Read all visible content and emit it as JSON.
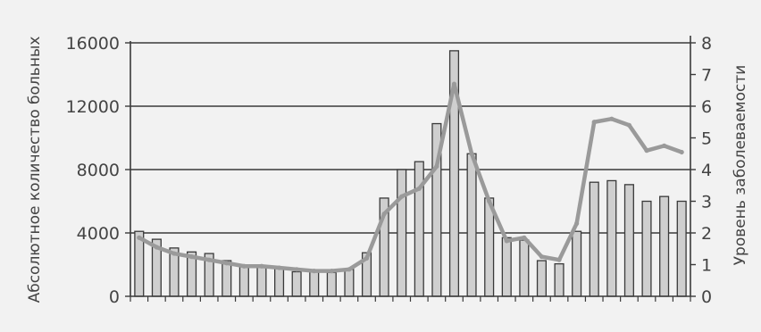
{
  "chart_data": {
    "type": "bar",
    "title": "",
    "ylabel": "Абсолютное количество больных",
    "y2label": "Уровень заболеваемости",
    "ylim": [
      0,
      16000
    ],
    "y2lim": [
      0,
      8
    ],
    "yticks": [
      "0",
      "4000",
      "8000",
      "12000",
      "16000"
    ],
    "y2ticks": [
      "0",
      "1",
      "2",
      "3",
      "4",
      "5",
      "6",
      "7",
      "8"
    ],
    "grid": true,
    "legend": "none",
    "colors": {
      "background": "#f2f2f2",
      "plot_background": "#f2f2f2",
      "bar_fill": "#cfcfcf",
      "bar_stroke": "#3a3a3a",
      "line": "#9a9a9a",
      "grid": "#3a3a3a",
      "text": "#444444"
    },
    "series": [
      {
        "type": "bar",
        "axis": "left",
        "values": [
          4100,
          3600,
          3050,
          2800,
          2700,
          2250,
          1950,
          1950,
          1800,
          1550,
          1600,
          1500,
          1700,
          2750,
          6200,
          8000,
          8500,
          10900,
          15500,
          9000,
          6200,
          3700,
          3550,
          2250,
          2050,
          4100,
          7200,
          7300,
          7050,
          6000,
          6300,
          6000
        ]
      },
      {
        "type": "line",
        "axis": "right",
        "values": [
          1.85,
          1.55,
          1.35,
          1.25,
          1.15,
          1.05,
          0.95,
          0.95,
          0.9,
          0.85,
          0.8,
          0.8,
          0.85,
          1.2,
          2.6,
          3.15,
          3.4,
          4.1,
          6.7,
          4.5,
          3.0,
          1.75,
          1.85,
          1.25,
          1.15,
          2.3,
          5.5,
          5.6,
          5.4,
          4.6,
          4.75,
          4.55
        ]
      }
    ]
  }
}
